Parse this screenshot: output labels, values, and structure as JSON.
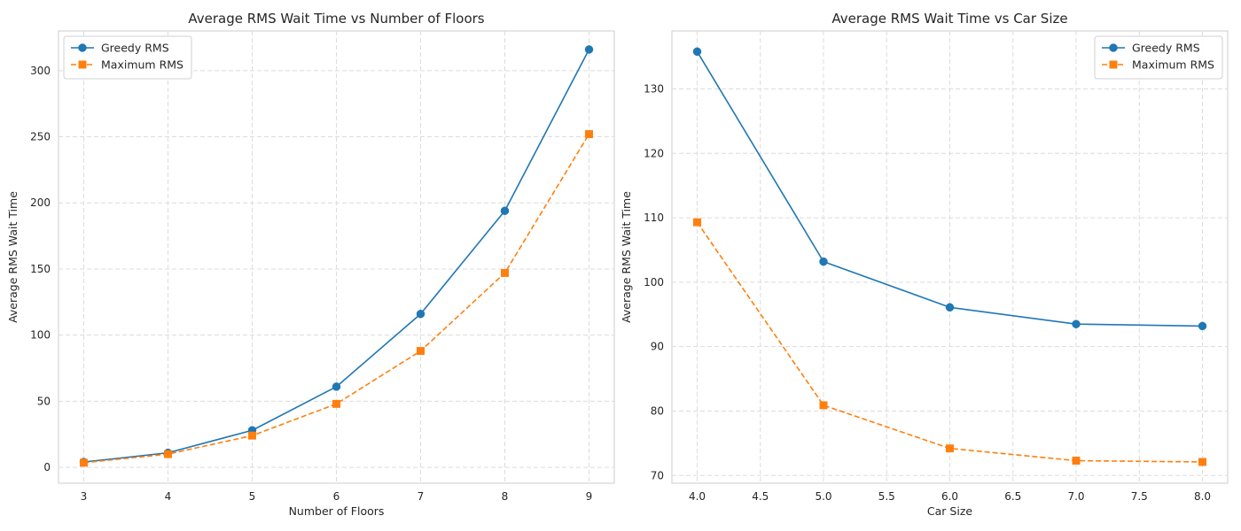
{
  "chart_data": [
    {
      "type": "line",
      "title": "Average RMS Wait Time vs Number of Floors",
      "xlabel": "Number of Floors",
      "ylabel": "Average RMS Wait Time",
      "xlim": [
        2.7,
        9.3
      ],
      "ylim": [
        -12,
        330
      ],
      "xticks": [
        3,
        4,
        5,
        6,
        7,
        8,
        9
      ],
      "yticks": [
        0,
        50,
        100,
        150,
        200,
        250,
        300
      ],
      "xtick_labels": [
        "3",
        "4",
        "5",
        "6",
        "7",
        "8",
        "9"
      ],
      "ytick_labels": [
        "0",
        "50",
        "100",
        "150",
        "200",
        "250",
        "300"
      ],
      "grid": true,
      "legend_position": "top-left",
      "series": [
        {
          "name": "Greedy RMS",
          "x": [
            3,
            4,
            5,
            6,
            7,
            8,
            9
          ],
          "values": [
            4,
            11,
            28,
            61,
            116,
            194,
            316
          ],
          "color": "#1f77b4",
          "marker": "circle",
          "linestyle": "solid"
        },
        {
          "name": "Maximum RMS",
          "x": [
            3,
            4,
            5,
            6,
            7,
            8,
            9
          ],
          "values": [
            3.5,
            10,
            24,
            48,
            88,
            147,
            252
          ],
          "color": "#ff7f0e",
          "marker": "square",
          "linestyle": "dashed"
        }
      ]
    },
    {
      "type": "line",
      "title": "Average RMS Wait Time vs Car Size",
      "xlabel": "Car Size",
      "ylabel": "Average RMS Wait Time",
      "xlim": [
        3.8,
        8.2
      ],
      "ylim": [
        68.8,
        139
      ],
      "xticks": [
        4.0,
        4.5,
        5.0,
        5.5,
        6.0,
        6.5,
        7.0,
        7.5,
        8.0
      ],
      "yticks": [
        70,
        80,
        90,
        100,
        110,
        120,
        130
      ],
      "xtick_labels": [
        "4.0",
        "4.5",
        "5.0",
        "5.5",
        "6.0",
        "6.5",
        "7.0",
        "7.5",
        "8.0"
      ],
      "ytick_labels": [
        "70",
        "80",
        "90",
        "100",
        "110",
        "120",
        "130"
      ],
      "grid": true,
      "legend_position": "top-right",
      "series": [
        {
          "name": "Greedy RMS",
          "x": [
            4,
            5,
            6,
            7,
            8
          ],
          "values": [
            135.8,
            103.2,
            96.1,
            93.5,
            93.2
          ],
          "color": "#1f77b4",
          "marker": "circle",
          "linestyle": "solid"
        },
        {
          "name": "Maximum RMS",
          "x": [
            4,
            5,
            6,
            7,
            8
          ],
          "values": [
            109.3,
            80.9,
            74.2,
            72.3,
            72.1
          ],
          "color": "#ff7f0e",
          "marker": "square",
          "linestyle": "dashed"
        }
      ]
    }
  ]
}
